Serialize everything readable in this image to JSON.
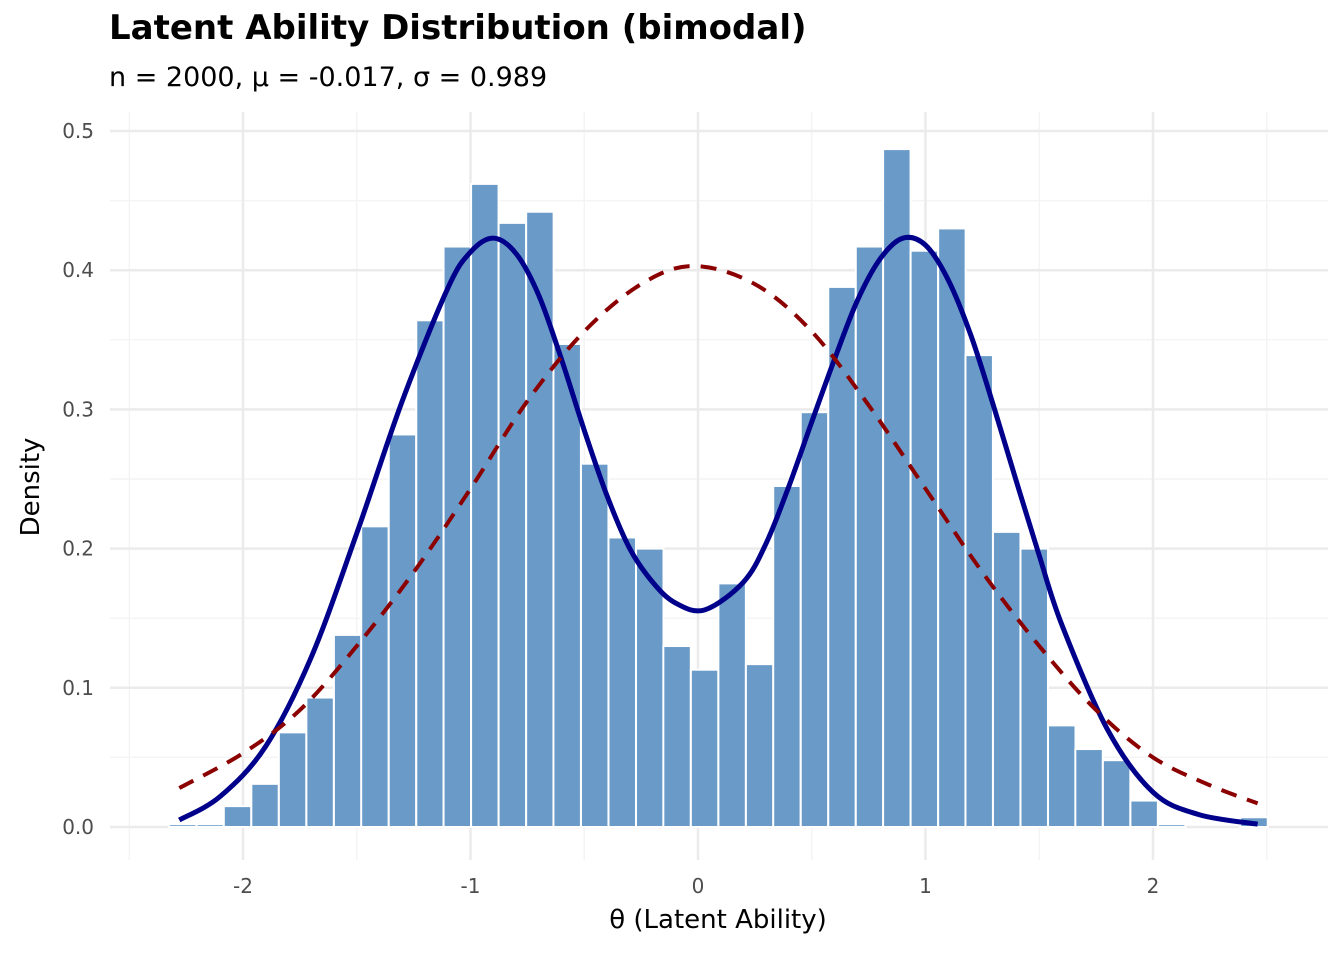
{
  "chart_data": {
    "type": "bar",
    "title": "Latent Ability Distribution (bimodal)",
    "subtitle": "n = 2000, μ = -0.017, σ = 0.989",
    "xlabel": "θ (Latent Ability)",
    "ylabel": "Density",
    "xlim": [
      -2.5,
      2.52
    ],
    "ylim": [
      0,
      0.5
    ],
    "x_ticks": [
      -2,
      -1,
      0,
      1,
      2
    ],
    "x_tick_labels": [
      "-2",
      "-1",
      "0",
      "1",
      "2"
    ],
    "y_ticks": [
      0.0,
      0.1,
      0.2,
      0.3,
      0.4,
      0.5
    ],
    "y_tick_labels": [
      "0.0",
      "0.1",
      "0.2",
      "0.3",
      "0.4",
      "0.5"
    ],
    "grid": true,
    "colors": {
      "bars": "#6a9bc8",
      "bar_border": "#ffffff",
      "bimodal_density": "#00008b",
      "normal_reference": "#8b0000",
      "grid_major": "#ebebeb",
      "grid_minor": "#f4f4f4"
    },
    "histogram": {
      "bin_width": 0.1208,
      "bin_centers": [
        -2.265,
        -2.144,
        -2.024,
        -1.903,
        -1.782,
        -1.661,
        -1.54,
        -1.42,
        -1.299,
        -1.178,
        -1.058,
        -0.937,
        -0.816,
        -0.695,
        -0.575,
        -0.454,
        -0.333,
        -0.212,
        -0.092,
        0.029,
        0.15,
        0.271,
        0.391,
        0.512,
        0.633,
        0.754,
        0.874,
        0.995,
        1.116,
        1.236,
        1.357,
        1.478,
        1.599,
        1.719,
        1.84,
        1.961,
        2.082,
        2.202,
        2.323,
        2.444
      ],
      "densities": [
        0.002,
        0.002,
        0.015,
        0.031,
        0.068,
        0.093,
        0.138,
        0.216,
        0.282,
        0.364,
        0.417,
        0.462,
        0.434,
        0.442,
        0.347,
        0.261,
        0.208,
        0.2,
        0.13,
        0.113,
        0.175,
        0.117,
        0.245,
        0.298,
        0.388,
        0.417,
        0.487,
        0.414,
        0.43,
        0.339,
        0.212,
        0.2,
        0.073,
        0.056,
        0.048,
        0.019,
        0.002,
        0.0,
        0.0,
        0.007
      ]
    },
    "series": [
      {
        "style": "solid",
        "x": [
          -2.28,
          -2.1,
          -1.9,
          -1.7,
          -1.5,
          -1.3,
          -1.1,
          -1.0,
          -0.9,
          -0.8,
          -0.7,
          -0.6,
          -0.5,
          -0.4,
          -0.3,
          -0.2,
          -0.1,
          0.03,
          0.2,
          0.3,
          0.4,
          0.5,
          0.6,
          0.7,
          0.8,
          0.9,
          1.0,
          1.1,
          1.2,
          1.3,
          1.4,
          1.5,
          1.6,
          1.8,
          2.0,
          2.2,
          2.46
        ],
        "y": [
          0.005,
          0.022,
          0.058,
          0.122,
          0.211,
          0.306,
          0.387,
          0.413,
          0.423,
          0.412,
          0.382,
          0.336,
          0.285,
          0.238,
          0.2,
          0.176,
          0.161,
          0.156,
          0.176,
          0.204,
          0.245,
          0.291,
          0.336,
          0.378,
          0.408,
          0.423,
          0.418,
          0.393,
          0.353,
          0.302,
          0.248,
          0.195,
          0.145,
          0.07,
          0.025,
          0.009,
          0.002
        ]
      },
      {
        "style": "dashed",
        "x": [
          -2.28,
          -2.0,
          -1.75,
          -1.5,
          -1.25,
          -1.0,
          -0.75,
          -0.5,
          -0.25,
          -0.02,
          0.25,
          0.5,
          0.75,
          1.0,
          1.25,
          1.5,
          1.75,
          2.0,
          2.25,
          2.46
        ],
        "y": [
          0.028,
          0.053,
          0.084,
          0.13,
          0.183,
          0.243,
          0.306,
          0.356,
          0.39,
          0.403,
          0.39,
          0.356,
          0.303,
          0.243,
          0.183,
          0.13,
          0.084,
          0.05,
          0.03,
          0.017
        ]
      }
    ]
  }
}
